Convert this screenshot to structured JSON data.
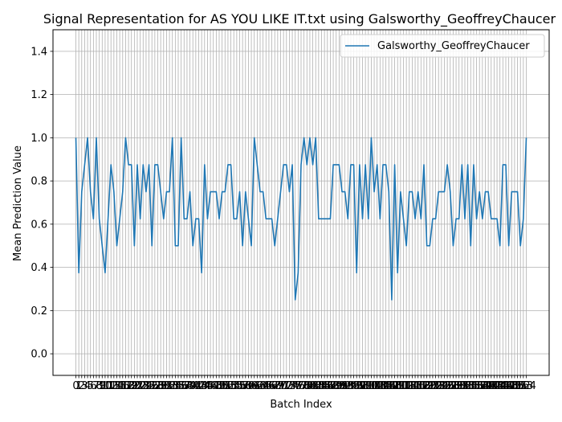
{
  "chart_data": {
    "type": "line",
    "title": "Signal Representation for AS YOU LIKE IT.txt using Galsworthy_GeoffreyChaucer",
    "xlabel": "Batch Index",
    "ylabel": "Mean Prediction Value",
    "ylim": [
      -0.1,
      1.5
    ],
    "yticks": [
      0.0,
      0.2,
      0.4,
      0.6,
      0.8,
      1.0,
      1.2,
      1.4
    ],
    "ytick_labels": [
      "0.0",
      "0.2",
      "0.4",
      "0.6",
      "0.8",
      "1.0",
      "1.2",
      "1.4"
    ],
    "grid": true,
    "legend_position": "top-right",
    "series": [
      {
        "name": "Galsworthy_GeoffreyChaucer",
        "color": "#1f77b4",
        "values": [
          1.0,
          0.375,
          0.75,
          0.875,
          1.0,
          0.75,
          0.625,
          1.0,
          0.625,
          0.5,
          0.375,
          0.625,
          0.875,
          0.75,
          0.5,
          0.625,
          0.75,
          1.0,
          0.875,
          0.875,
          0.5,
          0.875,
          0.625,
          0.875,
          0.75,
          0.875,
          0.5,
          0.875,
          0.875,
          0.75,
          0.625,
          0.75,
          0.75,
          1.0,
          0.5,
          0.5,
          1.0,
          0.625,
          0.625,
          0.75,
          0.5,
          0.625,
          0.625,
          0.375,
          0.875,
          0.625,
          0.75,
          0.75,
          0.75,
          0.625,
          0.75,
          0.75,
          0.875,
          0.875,
          0.625,
          0.625,
          0.75,
          0.5,
          0.75,
          0.625,
          0.5,
          1.0,
          0.875,
          0.75,
          0.75,
          0.625,
          0.625,
          0.625,
          0.5,
          0.625,
          0.75,
          0.875,
          0.875,
          0.75,
          0.875,
          0.25,
          0.375,
          0.875,
          1.0,
          0.875,
          1.0,
          0.875,
          1.0,
          0.625,
          0.625,
          0.625,
          0.625,
          0.625,
          0.875,
          0.875,
          0.875,
          0.75,
          0.75,
          0.625,
          0.875,
          0.875,
          0.375,
          0.875,
          0.625,
          0.875,
          0.625,
          1.0,
          0.75,
          0.875,
          0.625,
          0.875,
          0.875,
          0.75,
          0.25,
          0.875,
          0.375,
          0.75,
          0.625,
          0.5,
          0.75,
          0.75,
          0.625,
          0.75,
          0.625,
          0.875,
          0.5,
          0.5,
          0.625,
          0.625,
          0.75,
          0.75,
          0.75,
          0.875,
          0.75,
          0.5,
          0.625,
          0.625,
          0.875,
          0.625,
          0.875,
          0.5,
          0.875,
          0.625,
          0.75,
          0.625,
          0.75,
          0.75,
          0.625,
          0.625,
          0.625,
          0.5,
          0.875,
          0.875,
          0.5,
          0.75,
          0.75,
          0.75,
          0.5,
          0.625,
          1.0
        ]
      }
    ]
  }
}
